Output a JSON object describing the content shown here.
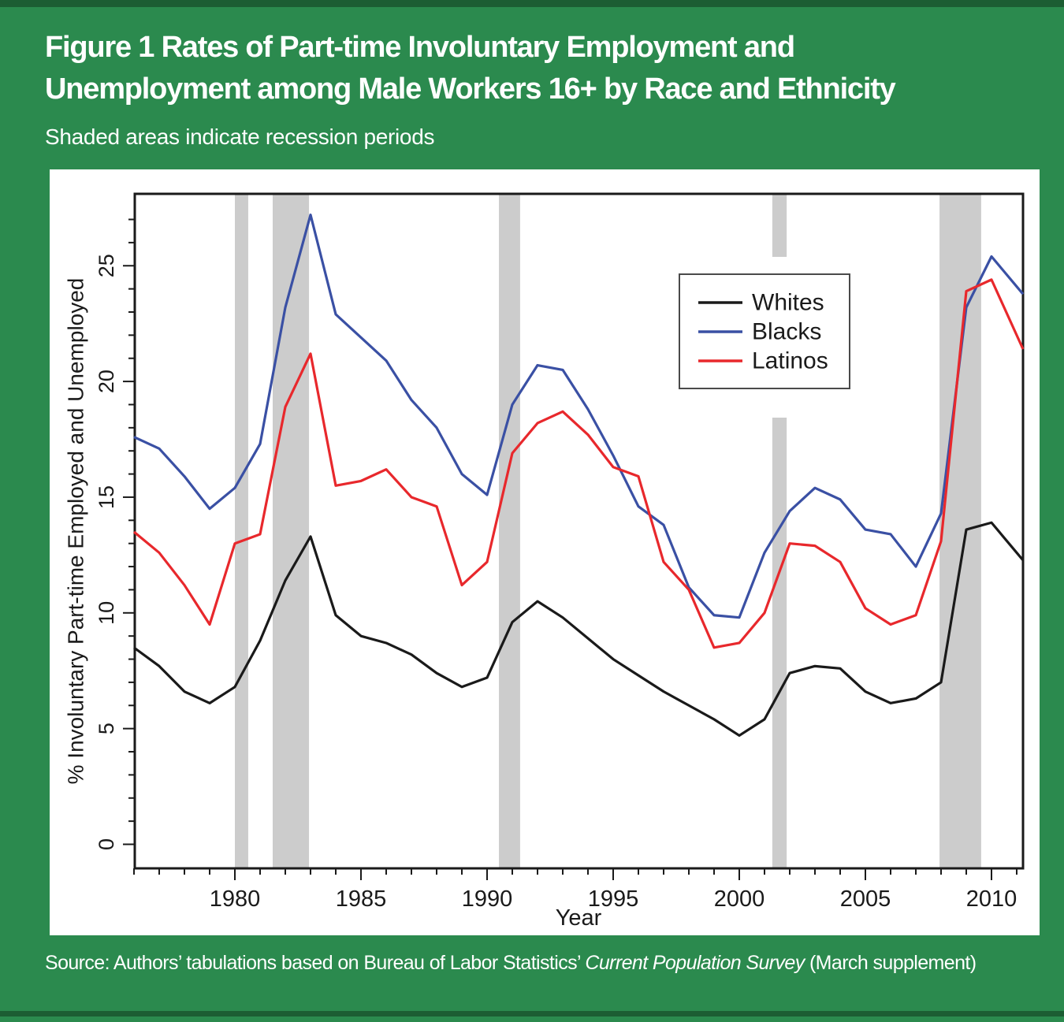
{
  "page": {
    "title_lines": [
      "Figure 1  Rates of Part-time Involuntary Employment and",
      "Unemployment among Male Workers 16+ by Race and Ethnicity"
    ],
    "subtitle": "Shaded areas indicate recession periods",
    "source": {
      "prefix": "Source: Authors’ tabulations based on Bureau of Labor Statistics’ ",
      "italic": "Current Population Survey",
      "suffix": " (March supplement)"
    },
    "colors": {
      "background_green": "#2b8a4e",
      "border_green": "#1c5d33",
      "panel_white": "#ffffff",
      "recession_band_gray": "#cccccc",
      "axis_black": "#1a1a1a"
    }
  },
  "chart_data": {
    "type": "line",
    "title": "Rates of Part-time Involuntary Employment and Unemployment among Male Workers 16+ by Race and Ethnicity",
    "note": "Shaded areas indicate recession periods",
    "xlabel": "Year",
    "ylabel": "% Involuntary Part-time Employed and Unemployed",
    "x_range": [
      1976,
      2011.25
    ],
    "y_range_drawn": [
      -1,
      28.1
    ],
    "x_ticks_labeled": [
      1980,
      1985,
      1990,
      1995,
      2000,
      2005,
      2010
    ],
    "y_ticks_labeled": [
      0,
      5,
      10,
      15,
      20,
      25
    ],
    "minor_ticks": "every 1 year on x (1976-2011), every 1 unit on y (0-27)",
    "grid": false,
    "legend_position": "inside upper right",
    "years": [
      1976,
      1977,
      1978,
      1979,
      1980,
      1981,
      1982,
      1983,
      1984,
      1985,
      1986,
      1987,
      1988,
      1989,
      1990,
      1991,
      1992,
      1993,
      1994,
      1995,
      1996,
      1997,
      1998,
      1999,
      2000,
      2001,
      2002,
      2003,
      2004,
      2005,
      2006,
      2007,
      2008,
      2009,
      2010,
      2011
    ],
    "series": [
      {
        "name": "Whites",
        "color": "#1a1a1a",
        "values": [
          8.5,
          7.7,
          6.6,
          6.1,
          6.8,
          8.8,
          11.4,
          13.3,
          9.9,
          9.0,
          8.7,
          8.2,
          7.4,
          6.8,
          7.2,
          9.6,
          10.5,
          9.8,
          8.9,
          8.0,
          7.3,
          6.6,
          6.0,
          5.4,
          4.7,
          5.4,
          7.4,
          7.7,
          7.6,
          6.6,
          6.1,
          6.3,
          7.0,
          13.6,
          13.9,
          12.6
        ]
      },
      {
        "name": "Blacks",
        "color": "#3a50a4",
        "values": [
          17.6,
          17.1,
          15.9,
          14.5,
          15.4,
          17.3,
          23.2,
          27.2,
          22.9,
          21.9,
          20.9,
          19.2,
          18.0,
          16.0,
          15.1,
          19.0,
          20.7,
          20.5,
          18.8,
          16.8,
          14.6,
          13.8,
          11.1,
          9.9,
          9.8,
          12.6,
          14.4,
          15.4,
          14.9,
          13.6,
          13.4,
          12.0,
          14.3,
          23.2,
          25.4,
          24.1
        ]
      },
      {
        "name": "Latinos",
        "color": "#e8282c",
        "values": [
          13.5,
          12.6,
          11.2,
          9.5,
          13.0,
          13.4,
          18.9,
          21.2,
          15.5,
          15.7,
          16.2,
          15.0,
          14.6,
          11.2,
          12.2,
          16.9,
          18.2,
          18.7,
          17.7,
          16.3,
          15.9,
          12.2,
          11.0,
          8.5,
          8.7,
          10.0,
          13.0,
          12.9,
          12.2,
          10.2,
          9.5,
          9.9,
          13.1,
          23.9,
          24.4,
          22.0
        ]
      }
    ],
    "recession_bands": [
      {
        "start": 1980.0,
        "end": 1980.53
      },
      {
        "start": 1981.5,
        "end": 1982.94
      },
      {
        "start": 1990.47,
        "end": 1991.31
      },
      {
        "start": 2001.31,
        "end": 2001.88
      },
      {
        "start": 2007.94,
        "end": 2009.59
      }
    ]
  }
}
